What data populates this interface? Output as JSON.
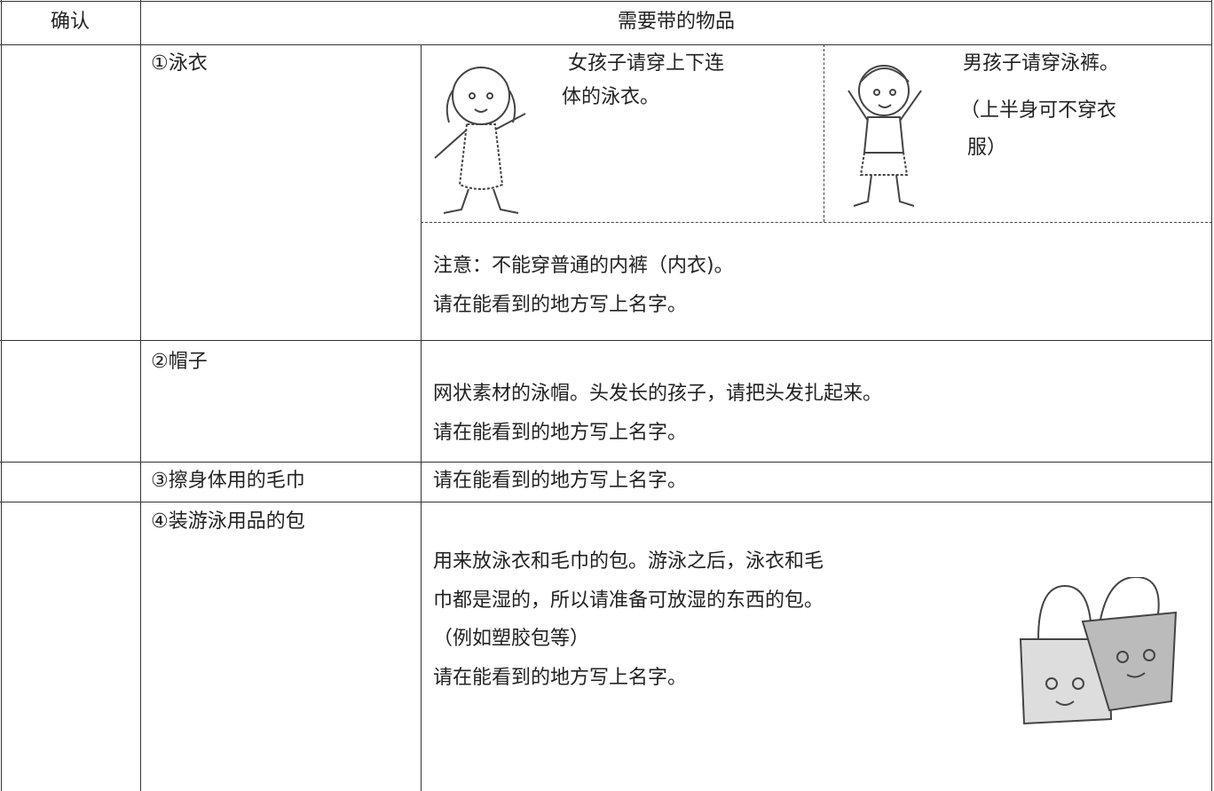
{
  "table": {
    "header": [
      "确认",
      "需要带的物品"
    ],
    "rows": [
      {
        "item": "①泳衣",
        "girl": [
          "女孩子请穿上下连",
          "体的泳衣。"
        ],
        "boy": [
          "男孩子请穿泳裤。",
          "（上半身可不穿衣",
          "服）"
        ],
        "note": [
          "注意：不能穿普通的内裤（内衣)。",
          "请在能看到的地方写上名字。"
        ]
      },
      {
        "item": "②帽子",
        "note": [
          "网状素材的泳帽。头发长的孩子，请把头发扎起来。",
          "请在能看到的地方写上名字。"
        ]
      },
      {
        "item": "③擦身体用的毛巾",
        "note": [
          "请在能看到的地方写上名字。"
        ]
      },
      {
        "item": "④装游泳用品的包",
        "note": [
          "用来放泳衣和毛巾的包。游泳之后，泳衣和毛",
          "巾都是湿的，所以请准备可放湿的东西的包。",
          "（例如塑胶包等）",
          "请在能看到的地方写上名字。"
        ]
      }
    ]
  }
}
